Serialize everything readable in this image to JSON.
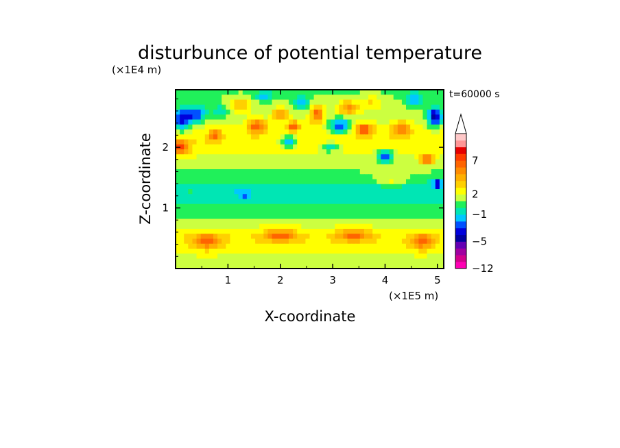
{
  "figure": {
    "title": "disturbunce of potential temperature",
    "time_label": "t=60000 s"
  },
  "chart_data": {
    "type": "heatmap",
    "title": "disturbunce of potential temperature",
    "xlabel": "X-coordinate",
    "ylabel": "Z-coordinate",
    "x_unit_label": "(×1E5 m)",
    "y_unit_label": "(×1E4 m)",
    "xlim": [
      0,
      5.12
    ],
    "ylim": [
      0,
      2.95
    ],
    "x_ticks": [
      1,
      2,
      3,
      4,
      5
    ],
    "y_ticks": [
      1,
      2
    ],
    "grid": false,
    "colorbar": {
      "levels": [
        -12,
        -10,
        -8,
        -6,
        -5,
        -4,
        -3,
        -2,
        -1,
        0,
        1,
        2,
        3,
        4,
        5,
        6,
        7,
        8,
        10,
        12
      ],
      "colors": [
        "#ff00b4",
        "#d2008c",
        "#a000a0",
        "#6400b4",
        "#0000a0",
        "#0000dc",
        "#0050ff",
        "#00c8ff",
        "#00e6b4",
        "#20f05a",
        "#ccff40",
        "#ffff00",
        "#ffd000",
        "#ffb000",
        "#ff8c00",
        "#ff6400",
        "#ff3c00",
        "#e60000",
        "#ff9696",
        "#ffc8c8"
      ],
      "tick_labels": [
        {
          "value": -12,
          "label": "−12"
        },
        {
          "value": -5,
          "label": "−5"
        },
        {
          "value": -1,
          "label": "−1"
        },
        {
          "value": 2,
          "label": "2"
        },
        {
          "value": 7,
          "label": "7"
        }
      ],
      "extend": "max"
    },
    "background_profile": {
      "z": [
        0.0,
        0.3,
        0.5,
        0.75,
        0.9,
        1.1,
        1.3,
        1.5,
        1.8,
        2.1,
        2.5,
        2.95
      ],
      "value": [
        0.8,
        2.5,
        3.0,
        1.6,
        0.3,
        0.0,
        -0.9,
        0.6,
        1.8,
        2.8,
        1.5,
        0.8
      ]
    },
    "features": [
      {
        "x": 0.12,
        "z": 2.45,
        "rx": 0.18,
        "rz": 0.18,
        "value": -5
      },
      {
        "x": 0.4,
        "z": 2.55,
        "rx": 0.2,
        "rz": 0.14,
        "value": -4
      },
      {
        "x": 0.08,
        "z": 2.0,
        "rx": 0.18,
        "rz": 0.12,
        "value": 5
      },
      {
        "x": 0.75,
        "z": 2.2,
        "rx": 0.12,
        "rz": 0.1,
        "value": 4
      },
      {
        "x": 0.85,
        "z": 2.6,
        "rx": 0.14,
        "rz": 0.1,
        "value": -2
      },
      {
        "x": 1.25,
        "z": 2.7,
        "rx": 0.2,
        "rz": 0.12,
        "value": 3
      },
      {
        "x": 1.55,
        "z": 2.35,
        "rx": 0.18,
        "rz": 0.12,
        "value": 5
      },
      {
        "x": 1.7,
        "z": 2.85,
        "rx": 0.15,
        "rz": 0.08,
        "value": -3
      },
      {
        "x": 2.0,
        "z": 2.55,
        "rx": 0.14,
        "rz": 0.1,
        "value": 4
      },
      {
        "x": 2.15,
        "z": 2.1,
        "rx": 0.14,
        "rz": 0.09,
        "value": -5
      },
      {
        "x": 2.4,
        "z": 2.75,
        "rx": 0.14,
        "rz": 0.12,
        "value": -3
      },
      {
        "x": 2.25,
        "z": 2.35,
        "rx": 0.12,
        "rz": 0.08,
        "value": 5
      },
      {
        "x": 2.7,
        "z": 2.55,
        "rx": 0.13,
        "rz": 0.15,
        "value": 5
      },
      {
        "x": 2.95,
        "z": 2.0,
        "rx": 0.2,
        "rz": 0.08,
        "value": -3
      },
      {
        "x": 3.15,
        "z": 2.35,
        "rx": 0.2,
        "rz": 0.12,
        "value": -5
      },
      {
        "x": 3.3,
        "z": 2.65,
        "rx": 0.2,
        "rz": 0.12,
        "value": 4
      },
      {
        "x": 3.6,
        "z": 2.3,
        "rx": 0.18,
        "rz": 0.1,
        "value": 5
      },
      {
        "x": 3.75,
        "z": 2.75,
        "rx": 0.2,
        "rz": 0.12,
        "value": 2
      },
      {
        "x": 4.0,
        "z": 1.85,
        "rx": 0.14,
        "rz": 0.1,
        "value": -5
      },
      {
        "x": 4.3,
        "z": 2.3,
        "rx": 0.18,
        "rz": 0.12,
        "value": 4
      },
      {
        "x": 4.55,
        "z": 2.8,
        "rx": 0.15,
        "rz": 0.12,
        "value": -3
      },
      {
        "x": 4.8,
        "z": 1.8,
        "rx": 0.12,
        "rz": 0.08,
        "value": 6
      },
      {
        "x": 4.95,
        "z": 2.5,
        "rx": 0.14,
        "rz": 0.16,
        "value": -6
      },
      {
        "x": 5.0,
        "z": 1.4,
        "rx": 0.1,
        "rz": 0.07,
        "value": -4
      },
      {
        "x": 4.1,
        "z": 1.45,
        "rx": 0.3,
        "rz": 0.1,
        "value": 2
      },
      {
        "x": 1.3,
        "z": 1.2,
        "rx": 0.12,
        "rz": 0.08,
        "value": -2
      },
      {
        "x": 0.3,
        "z": 1.3,
        "rx": 0.2,
        "rz": 0.06,
        "value": 1
      },
      {
        "x": 0.6,
        "z": 0.45,
        "rx": 0.25,
        "rz": 0.12,
        "value": 4
      },
      {
        "x": 2.0,
        "z": 0.55,
        "rx": 0.3,
        "rz": 0.1,
        "value": 4
      },
      {
        "x": 3.4,
        "z": 0.55,
        "rx": 0.3,
        "rz": 0.1,
        "value": 4
      },
      {
        "x": 4.7,
        "z": 0.45,
        "rx": 0.2,
        "rz": 0.12,
        "value": 4
      },
      {
        "x": 1.5,
        "z": 0.05,
        "rx": 0.5,
        "rz": 0.05,
        "value": 1
      },
      {
        "x": 4.0,
        "z": 0.05,
        "rx": 0.5,
        "rz": 0.05,
        "value": 1
      }
    ]
  }
}
